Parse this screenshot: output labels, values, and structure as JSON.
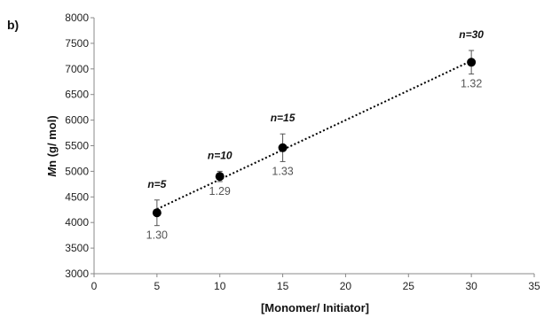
{
  "panel_label": "b)",
  "chart_data": {
    "type": "scatter",
    "xlabel": "[Monomer/ Initiator]",
    "ylabel_italic": "M",
    "ylabel_rest": "n (g/ mol)",
    "xlim": [
      0,
      35
    ],
    "ylim": [
      3000,
      8000
    ],
    "xticks": [
      0,
      5,
      10,
      15,
      20,
      25,
      30,
      35
    ],
    "yticks": [
      3000,
      3500,
      4000,
      4500,
      5000,
      5500,
      6000,
      6500,
      7000,
      7500,
      8000
    ],
    "grid": false,
    "trendline": {
      "style": "dotted",
      "type": "linear"
    },
    "points": [
      {
        "x": 5,
        "y": 4190,
        "err": 250,
        "label": "n=5",
        "pdi": "1.30"
      },
      {
        "x": 10,
        "y": 4900,
        "err": 100,
        "label": "n=10",
        "pdi": "1.29"
      },
      {
        "x": 15,
        "y": 5460,
        "err": 270,
        "label": "n=15",
        "pdi": "1.33"
      },
      {
        "x": 30,
        "y": 7130,
        "err": 230,
        "label": "n=30",
        "pdi": "1.32"
      }
    ],
    "colors": {
      "marker": "#000000",
      "axis": "#888888",
      "pdi_text": "#555555"
    }
  }
}
